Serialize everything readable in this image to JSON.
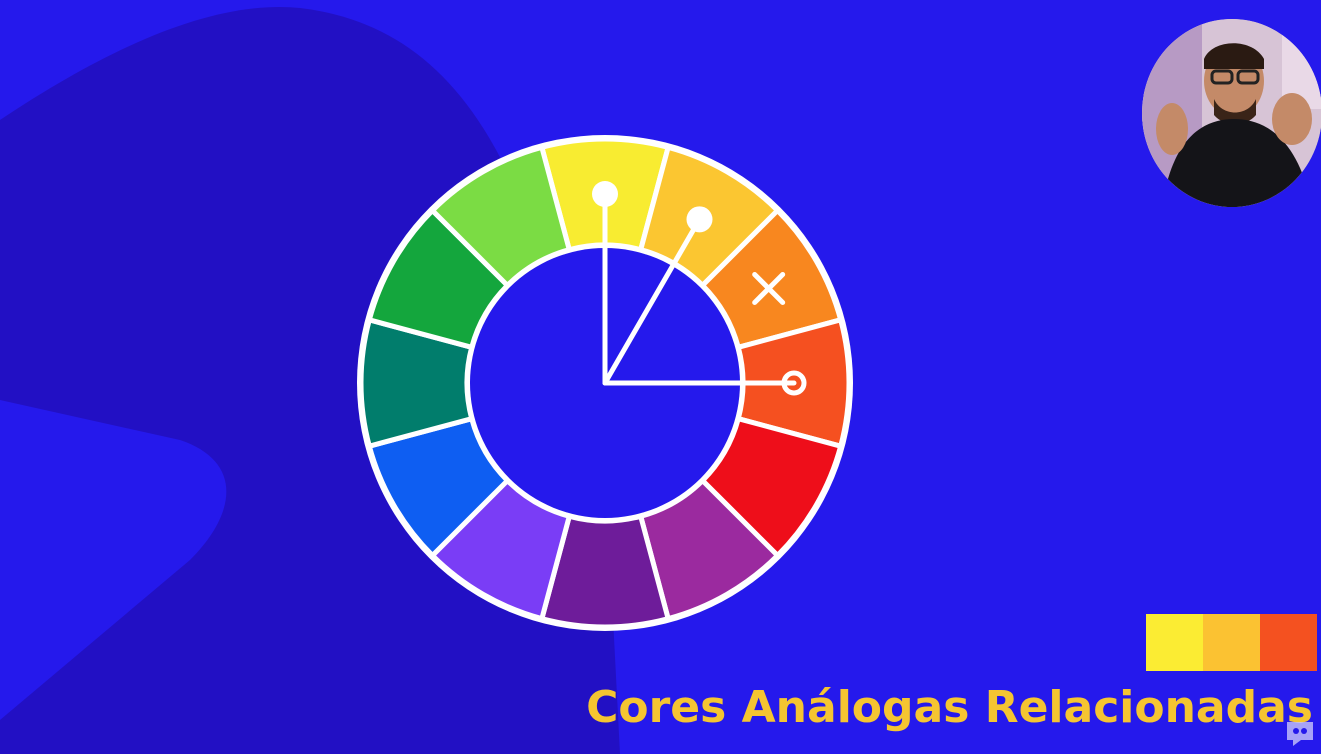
{
  "colors": {
    "background": "#2519ec",
    "background_shape": "#2210c4",
    "ring_separator": "#ffffff",
    "pointer_line": "#ffffff",
    "title_text": "#f5c531"
  },
  "color_wheel": {
    "segments": [
      {
        "name": "yellow",
        "color": "#f8ec31"
      },
      {
        "name": "yellow-orange",
        "color": "#fbc631"
      },
      {
        "name": "orange",
        "color": "#f8871f"
      },
      {
        "name": "red-orange",
        "color": "#f55020"
      },
      {
        "name": "red",
        "color": "#ee0e1a"
      },
      {
        "name": "red-violet",
        "color": "#9b2a9f"
      },
      {
        "name": "violet",
        "color": "#6e1c9a"
      },
      {
        "name": "blue-violet",
        "color": "#7a3df6"
      },
      {
        "name": "blue",
        "color": "#0e5ef2"
      },
      {
        "name": "blue-green",
        "color": "#017d6c"
      },
      {
        "name": "green",
        "color": "#14a63d"
      },
      {
        "name": "yellow-green",
        "color": "#7bdc44"
      }
    ],
    "selected": [
      "yellow",
      "yellow-orange",
      "red-orange"
    ],
    "excluded": [
      "orange"
    ],
    "excluded_marker_icon": "x-mark-icon",
    "selection_marker_icon": "circle-knob-icon"
  },
  "swatches": [
    {
      "name": "yellow",
      "color": "#fbec33"
    },
    {
      "name": "yellow-orange",
      "color": "#fbc232"
    },
    {
      "name": "red-orange",
      "color": "#f45120"
    }
  ],
  "title": "Cores Análogas Relacionadas",
  "presenter_icon": "presenter-webcam-icon",
  "corner_icon": "channel-logo-icon"
}
